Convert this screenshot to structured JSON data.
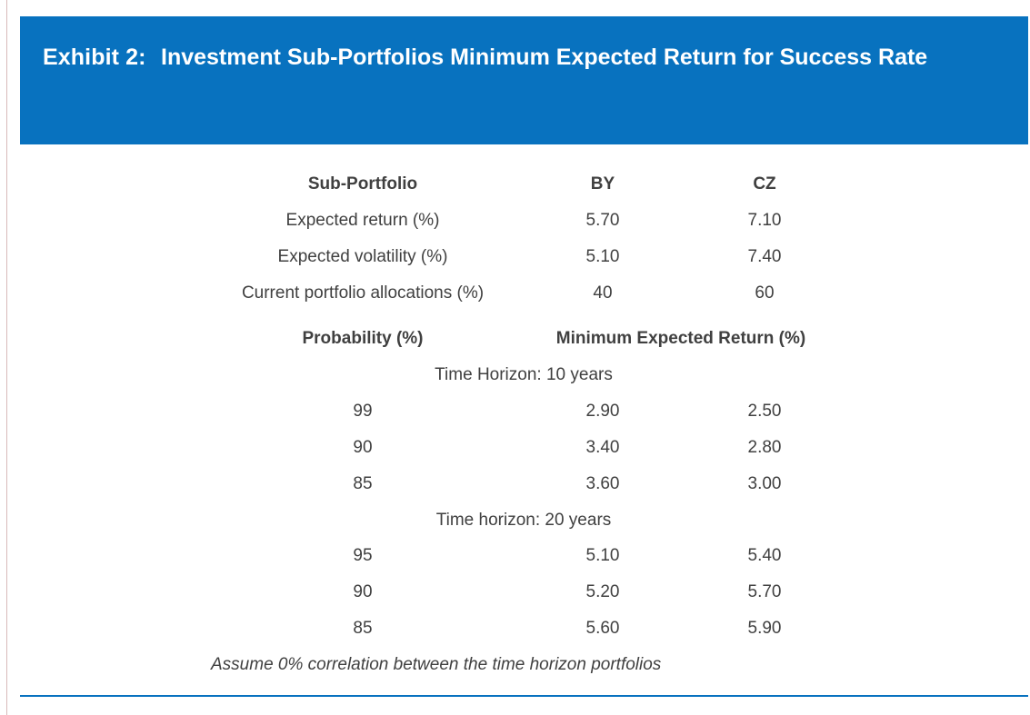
{
  "exhibit": {
    "label": "Exhibit 2:",
    "title": "Investment Sub-Portfolios Minimum Expected Return for Success Rate"
  },
  "portfolio_table": {
    "headers": [
      "Sub-Portfolio",
      "BY",
      "CZ"
    ],
    "rows": [
      {
        "label": "Expected return (%)",
        "by": "5.70",
        "cz": "7.10"
      },
      {
        "label": "Expected volatility (%)",
        "by": "5.10",
        "cz": "7.40"
      },
      {
        "label": "Current portfolio allocations (%)",
        "by": "40",
        "cz": "60"
      }
    ]
  },
  "probability_table": {
    "headers": [
      "Probability (%)",
      "Minimum Expected Return (%)"
    ],
    "sections": [
      {
        "title": "Time Horizon: 10 years",
        "rows": [
          {
            "probability": "99",
            "by": "2.90",
            "cz": "2.50"
          },
          {
            "probability": "90",
            "by": "3.40",
            "cz": "2.80"
          },
          {
            "probability": "85",
            "by": "3.60",
            "cz": "3.00"
          }
        ]
      },
      {
        "title": "Time horizon: 20 years",
        "rows": [
          {
            "probability": "95",
            "by": "5.10",
            "cz": "5.40"
          },
          {
            "probability": "90",
            "by": "5.20",
            "cz": "5.70"
          },
          {
            "probability": "85",
            "by": "5.60",
            "cz": "5.90"
          }
        ]
      }
    ]
  },
  "note": "Assume 0% correlation between the time horizon portfolios"
}
